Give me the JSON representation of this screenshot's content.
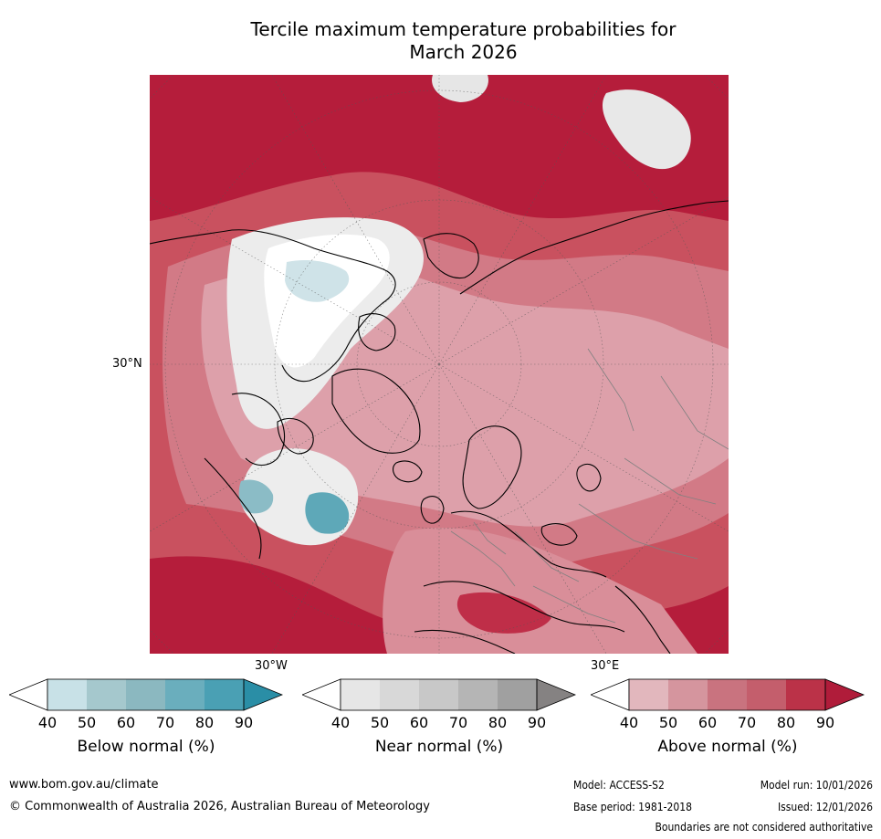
{
  "title_line1": "Tercile maximum temperature probabilities for",
  "title_line2": "March 2026",
  "map": {
    "latitude_label": "30°N",
    "longitude_labels": [
      "30°W",
      "30°E"
    ]
  },
  "colorbars": [
    {
      "title": "Below normal (%)",
      "ticks": [
        "40",
        "50",
        "60",
        "70",
        "80",
        "90"
      ],
      "colors": [
        "#ffffff",
        "#c8e1e7",
        "#a5c8cd",
        "#8bb8c0",
        "#6aaebd",
        "#4aa0b4",
        "#2a8ea6"
      ]
    },
    {
      "title": "Near normal (%)",
      "ticks": [
        "40",
        "50",
        "60",
        "70",
        "80",
        "90"
      ],
      "colors": [
        "#ffffff",
        "#e6e6e6",
        "#d8d8d8",
        "#c8c8c8",
        "#b5b5b5",
        "#a0a0a0",
        "#858282"
      ]
    },
    {
      "title": "Above normal (%)",
      "ticks": [
        "40",
        "50",
        "60",
        "70",
        "80",
        "90"
      ],
      "colors": [
        "#ffffff",
        "#e2b7bd",
        "#d5959e",
        "#c9737f",
        "#c45e6c",
        "#bb3248",
        "#b01c3a"
      ]
    }
  ],
  "footer": {
    "url": "www.bom.gov.au/climate",
    "copyright": "© Commonwealth of Australia 2026, Australian Bureau of Meteorology",
    "model": "Model: ACCESS-S2",
    "base_period": "Base period: 1981-2018",
    "model_run": "Model run: 10/01/2026",
    "issued": "Issued: 12/01/2026",
    "disclaimer": "Boundaries are not considered authoritative"
  }
}
